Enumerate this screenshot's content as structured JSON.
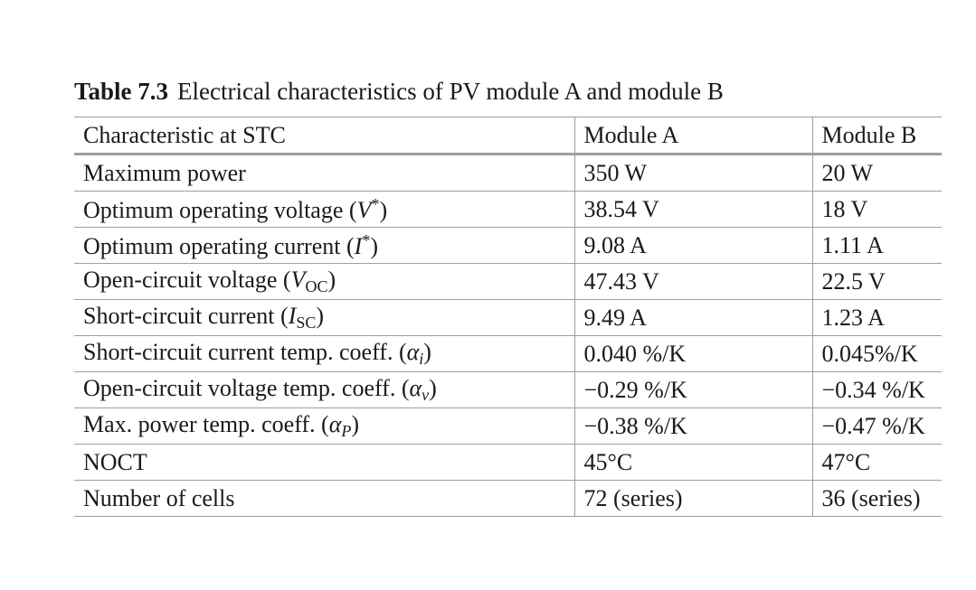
{
  "caption": {
    "label": "Table 7.3",
    "text": "Electrical characteristics of PV module A and module B"
  },
  "table": {
    "headers": [
      "Characteristic at STC",
      "Module A",
      "Module B"
    ],
    "rows": [
      {
        "characteristic": "Maximum power",
        "symbol": "",
        "symbol_sub": "",
        "symbol_sup": "",
        "module_a": "350 W",
        "module_b": "20 W"
      },
      {
        "characteristic": "Optimum operating voltage",
        "symbol": "V",
        "symbol_sub": "",
        "symbol_sup": "*",
        "module_a": "38.54 V",
        "module_b": "18 V"
      },
      {
        "characteristic": "Optimum operating current",
        "symbol": "I",
        "symbol_sub": "",
        "symbol_sup": "*",
        "module_a": "9.08 A",
        "module_b": "1.11 A"
      },
      {
        "characteristic": "Open-circuit voltage",
        "symbol": "V",
        "symbol_sub": "OC",
        "symbol_sup": "",
        "module_a": "47.43 V",
        "module_b": "22.5 V"
      },
      {
        "characteristic": "Short-circuit current",
        "symbol": "I",
        "symbol_sub": "SC",
        "symbol_sup": "",
        "module_a": "9.49 A",
        "module_b": "1.23 A"
      },
      {
        "characteristic": "Short-circuit current temp. coeff.",
        "symbol": "α",
        "symbol_sub": "i",
        "symbol_sup": "",
        "module_a": "0.040 %/K",
        "module_b": "0.045%/K"
      },
      {
        "characteristic": "Open-circuit voltage temp. coeff.",
        "symbol": "α",
        "symbol_sub": "v",
        "symbol_sup": "",
        "module_a": "−0.29 %/K",
        "module_b": "−0.34 %/K"
      },
      {
        "characteristic": "Max. power temp. coeff.",
        "symbol": "α",
        "symbol_sub": "P",
        "symbol_sup": "",
        "module_a": "−0.38 %/K",
        "module_b": "−0.47 %/K"
      },
      {
        "characteristic": "NOCT",
        "symbol": "",
        "symbol_sub": "",
        "symbol_sup": "",
        "module_a": "45°C",
        "module_b": "47°C"
      },
      {
        "characteristic": "Number of cells",
        "symbol": "",
        "symbol_sub": "",
        "symbol_sup": "",
        "module_a": "72 (series)",
        "module_b": "36 (series)"
      }
    ]
  }
}
